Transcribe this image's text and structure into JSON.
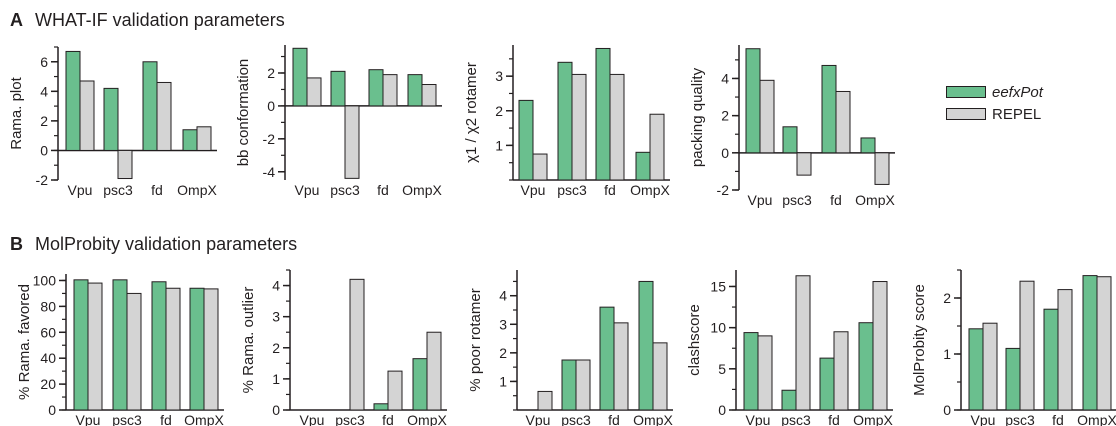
{
  "sections": {
    "a": {
      "letter": "A",
      "title": "WHAT-IF validation parameters"
    },
    "b": {
      "letter": "B",
      "title": "MolProbity validation parameters"
    }
  },
  "legend": {
    "position": "right",
    "items": [
      {
        "label": "eefxPot",
        "color": "#6abf8e",
        "italic": true
      },
      {
        "label": "REPEL",
        "color": "#d4d4d4",
        "italic": false
      }
    ]
  },
  "colors": {
    "eefxPot": "#6abf8e",
    "REPEL": "#d4d4d4",
    "stroke": "#231f20"
  },
  "chart_data": [
    {
      "panel": "A",
      "type": "bar",
      "categories": [
        "Vpu",
        "psc3",
        "fd",
        "OmpX"
      ],
      "ylabel": "Rama. plot",
      "ylim": [
        -2,
        7
      ],
      "yticks": [
        -2,
        0,
        2,
        4,
        6
      ],
      "minor": 1,
      "series": [
        {
          "name": "eefxPot",
          "values": [
            6.7,
            4.2,
            6.0,
            1.4
          ]
        },
        {
          "name": "REPEL",
          "values": [
            4.7,
            -1.9,
            4.6,
            1.6
          ]
        }
      ]
    },
    {
      "panel": "A",
      "type": "bar",
      "categories": [
        "Vpu",
        "psc3",
        "fd",
        "OmpX"
      ],
      "ylabel": "bb conformation",
      "ylim": [
        -4.5,
        3.7
      ],
      "yticks": [
        -4,
        -2,
        0,
        2
      ],
      "minor": 1,
      "series": [
        {
          "name": "eefxPot",
          "values": [
            3.5,
            2.1,
            2.2,
            1.9
          ]
        },
        {
          "name": "REPEL",
          "values": [
            1.7,
            -4.4,
            1.9,
            1.3
          ]
        }
      ]
    },
    {
      "panel": "A",
      "type": "bar",
      "categories": [
        "Vpu",
        "psc3",
        "fd",
        "OmpX"
      ],
      "ylabel": "χ1 / χ2 rotamer",
      "ylim": [
        0,
        3.9
      ],
      "yticks": [
        1,
        2,
        3
      ],
      "minor": 0.5,
      "series": [
        {
          "name": "eefxPot",
          "values": [
            2.3,
            3.4,
            3.8,
            0.8
          ]
        },
        {
          "name": "REPEL",
          "values": [
            0.75,
            3.05,
            3.05,
            1.9
          ]
        }
      ]
    },
    {
      "panel": "A",
      "type": "bar",
      "categories": [
        "Vpu",
        "psc3",
        "fd",
        "OmpX"
      ],
      "ylabel": "packing quality",
      "ylim": [
        -2,
        5.8
      ],
      "yticks": [
        -2,
        0,
        2,
        4
      ],
      "minor": 1,
      "series": [
        {
          "name": "eefxPot",
          "values": [
            5.6,
            1.4,
            4.7,
            0.8
          ]
        },
        {
          "name": "REPEL",
          "values": [
            3.9,
            -1.2,
            3.3,
            -1.7
          ]
        }
      ]
    },
    {
      "panel": "B",
      "type": "bar",
      "categories": [
        "Vpu",
        "psc3",
        "fd",
        "OmpX"
      ],
      "ylabel": "% Rama. favored",
      "ylim": [
        0,
        105
      ],
      "yticks": [
        0,
        20,
        40,
        60,
        80,
        100
      ],
      "minor": 10,
      "series": [
        {
          "name": "eefxPot",
          "values": [
            100.5,
            100.5,
            99,
            94
          ]
        },
        {
          "name": "REPEL",
          "values": [
            98,
            90,
            94,
            93.5
          ]
        }
      ]
    },
    {
      "panel": "B",
      "type": "bar",
      "categories": [
        "Vpu",
        "psc3",
        "fd",
        "OmpX"
      ],
      "ylabel": "% Rama. outlier",
      "ylim": [
        0,
        4.5
      ],
      "yticks": [
        0,
        1,
        2,
        3,
        4
      ],
      "minor": 0.5,
      "series": [
        {
          "name": "eefxPot",
          "values": [
            0,
            0,
            0.2,
            1.65
          ]
        },
        {
          "name": "REPEL",
          "values": [
            0,
            4.2,
            1.25,
            2.5
          ]
        }
      ]
    },
    {
      "panel": "B",
      "type": "bar",
      "categories": [
        "Vpu",
        "psc3",
        "fd",
        "OmpX"
      ],
      "ylabel": "% poor rotamer",
      "ylim": [
        0,
        4.9
      ],
      "yticks": [
        1,
        2,
        3,
        4
      ],
      "minor": 0.5,
      "series": [
        {
          "name": "eefxPot",
          "values": [
            0,
            1.75,
            3.6,
            4.5
          ]
        },
        {
          "name": "REPEL",
          "values": [
            0.65,
            1.75,
            3.05,
            2.35
          ]
        }
      ]
    },
    {
      "panel": "B",
      "type": "bar",
      "categories": [
        "Vpu",
        "psc3",
        "fd",
        "OmpX"
      ],
      "ylabel": "clashscore",
      "ylim": [
        0,
        17
      ],
      "yticks": [
        0,
        5,
        10,
        15
      ],
      "minor": 2.5,
      "series": [
        {
          "name": "eefxPot",
          "values": [
            9.4,
            2.4,
            6.3,
            10.6
          ]
        },
        {
          "name": "REPEL",
          "values": [
            9.0,
            16.3,
            9.5,
            15.6
          ]
        }
      ]
    },
    {
      "panel": "B",
      "type": "bar",
      "categories": [
        "Vpu",
        "psc3",
        "fd",
        "OmpX"
      ],
      "ylabel": "MolProbity score",
      "ylim": [
        0,
        2.5
      ],
      "yticks": [
        0,
        1,
        2
      ],
      "minor": 0.5,
      "series": [
        {
          "name": "eefxPot",
          "values": [
            1.45,
            1.1,
            1.8,
            2.4
          ]
        },
        {
          "name": "REPEL",
          "values": [
            1.55,
            2.3,
            2.15,
            2.38
          ]
        }
      ]
    }
  ]
}
